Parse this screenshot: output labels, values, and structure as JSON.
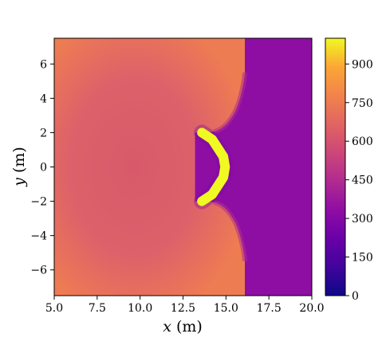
{
  "chart_data": {
    "type": "heatmap",
    "title": "",
    "xlabel": {
      "symbol": "x",
      "unit": "(m)"
    },
    "ylabel": {
      "symbol": "y",
      "unit": "(m)"
    },
    "xlim": [
      5.0,
      20.0
    ],
    "ylim": [
      -7.5,
      7.5
    ],
    "x_ticks": [
      5.0,
      7.5,
      10.0,
      12.5,
      15.0,
      17.5,
      20.0
    ],
    "x_tick_labels": [
      "5.0",
      "7.5",
      "10.0",
      "12.5",
      "15.0",
      "17.5",
      "20.0"
    ],
    "y_ticks": [
      -6,
      -4,
      -2,
      0,
      2,
      4,
      6
    ],
    "y_tick_labels": [
      "−6",
      "−4",
      "−2",
      "0",
      "2",
      "4",
      "6"
    ],
    "colorbar": {
      "colormap": "plasma",
      "vmin": 0,
      "vmax": 1000,
      "ticks": [
        0,
        150,
        300,
        450,
        600,
        750,
        900
      ],
      "tick_labels": [
        "0",
        "150",
        "300",
        "450",
        "600",
        "750",
        "900"
      ]
    },
    "field": {
      "ambient_value": 230,
      "shocked_region_edge_value": 650,
      "shocked_region_center_value": 520,
      "shock_front_x_outer": 16.1,
      "body_value": 1000,
      "body_centerline": [
        [
          13.6,
          2.0
        ],
        [
          14.2,
          1.6
        ],
        [
          14.85,
          0.6
        ],
        [
          14.95,
          0.0
        ],
        [
          14.85,
          -0.6
        ],
        [
          14.2,
          -1.6
        ],
        [
          13.6,
          -2.0
        ]
      ],
      "body_half_width_m": 0.28
    },
    "grid": false,
    "legend": "none"
  }
}
